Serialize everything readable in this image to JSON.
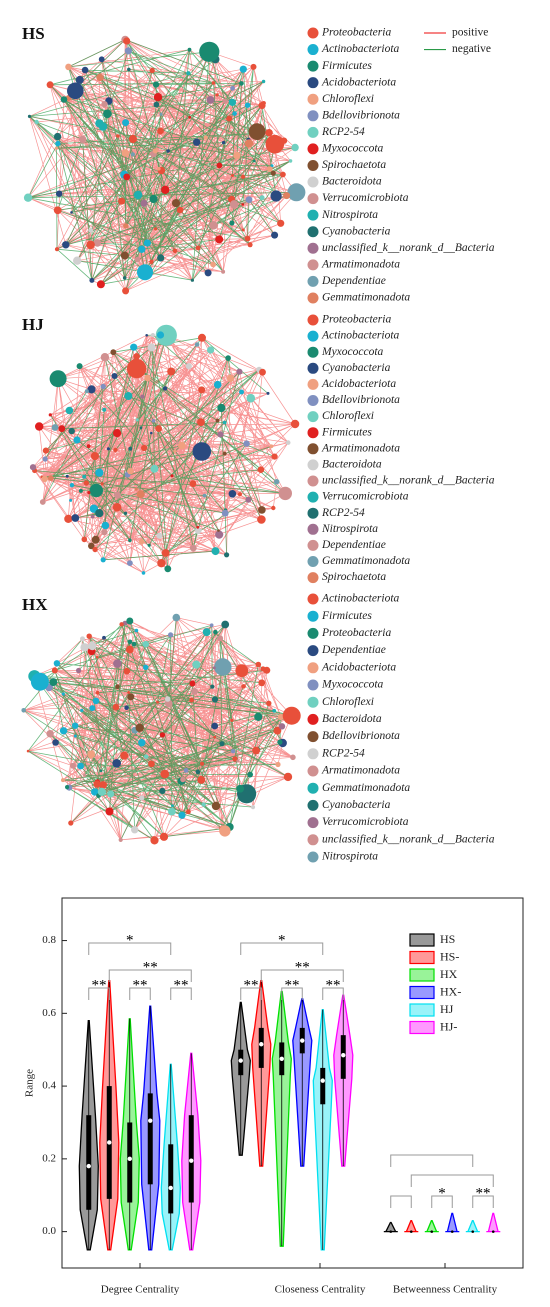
{
  "edge_legend": {
    "labels": [
      "positive",
      "negative"
    ],
    "colors": [
      "#f03a3a",
      "#2a9a48"
    ]
  },
  "networks": [
    {
      "label": "HS",
      "taxa": [
        "Proteobacteria",
        "Actinobacteriota",
        "Firmicutes",
        "Acidobacteriota",
        "Chloroflexi",
        "Bdellovibrionota",
        "RCP2-54",
        "Myxococcota",
        "Spirochaetota",
        "Bacteroidota",
        "Verrucomicrobiota",
        "Nitrospirota",
        "Cyanobacteria",
        "unclassified_k__norank_d__Bacteria",
        "Armatimonadota",
        "Dependentiae",
        "Gemmatimonadota"
      ],
      "colors": [
        "#e8503a",
        "#1ab0d0",
        "#1a8a70",
        "#2a4a80",
        "#f0a080",
        "#8090c0",
        "#70d0c0",
        "#e02020",
        "#805030",
        "#d0d0d0",
        "#d09090",
        "#20b0b0",
        "#207070",
        "#a07090",
        "#d09090",
        "#70a0b0",
        "#e08060"
      ]
    },
    {
      "label": "HJ",
      "taxa": [
        "Proteobacteria",
        "Actinobacteriota",
        "Myxococcota",
        "Cyanobacteria",
        "Acidobacteriota",
        "Bdellovibrionota",
        "Chloroflexi",
        "Firmicutes",
        "Armatimonadota",
        "Bacteroidota",
        "unclassified_k__norank_d__Bacteria",
        "Verrucomicrobiota",
        "RCP2-54",
        "Nitrospirota",
        "Dependentiae",
        "Gemmatimonadota",
        "Spirochaetota"
      ],
      "colors": [
        "#e8503a",
        "#1ab0d0",
        "#1a8a70",
        "#2a4a80",
        "#f0a080",
        "#8090c0",
        "#70d0c0",
        "#e02020",
        "#805030",
        "#d0d0d0",
        "#d09090",
        "#20b0b0",
        "#207070",
        "#a07090",
        "#d09090",
        "#70a0b0",
        "#e08060"
      ]
    },
    {
      "label": "HX",
      "taxa": [
        "Actinobacteriota",
        "Firmicutes",
        "Proteobacteria",
        "Dependentiae",
        "Acidobacteriota",
        "Myxococcota",
        "Chloroflexi",
        "Bacteroidota",
        "Bdellovibrionota",
        "RCP2-54",
        "Armatimonadota",
        "Gemmatimonadota",
        "Cyanobacteria",
        "Verrucomicrobiota",
        "unclassified_k__norank_d__Bacteria",
        "Nitrospirota"
      ],
      "colors": [
        "#e8503a",
        "#1ab0d0",
        "#1a8a70",
        "#2a4a80",
        "#f0a080",
        "#8090c0",
        "#70d0c0",
        "#e02020",
        "#805030",
        "#d0d0d0",
        "#d09090",
        "#20b0b0",
        "#207070",
        "#a07090",
        "#d09090",
        "#70a0b0"
      ]
    }
  ],
  "chart_data": {
    "type": "violin",
    "y_label": "Range",
    "categories": [
      "Degree Centrality",
      "Closeness Centrality",
      "Betweenness Centrality"
    ],
    "ylim": [
      -0.1,
      0.917
    ],
    "yticks": [
      {
        "value": 0,
        "label": "0.0"
      },
      0.2,
      0.4,
      0.6,
      0.8
    ],
    "legend": "upper right",
    "brackets": [
      [
        "*",
        "**",
        "**",
        "**",
        "**"
      ],
      [
        "*",
        "**",
        "**",
        "**",
        "**"
      ],
      [
        null,
        null,
        null,
        "*",
        "**"
      ]
    ],
    "series": [
      {
        "name": "HS",
        "color": "#000000",
        "values": [
          {
            "min": -0.05,
            "q1": 0.06,
            "median": 0.18,
            "q3": 0.32,
            "max": 0.58
          },
          {
            "min": 0.21,
            "q1": 0.43,
            "median": 0.47,
            "q3": 0.5,
            "max": 0.63
          },
          {
            "min": 0,
            "q1": 0,
            "median": 0,
            "q3": 0,
            "max": 0.025
          }
        ]
      },
      {
        "name": "HS-",
        "color": "#ff0000",
        "values": [
          {
            "min": -0.05,
            "q1": 0.09,
            "median": 0.245,
            "q3": 0.4,
            "max": 0.69
          },
          {
            "min": 0.18,
            "q1": 0.45,
            "median": 0.515,
            "q3": 0.56,
            "max": 0.69
          },
          {
            "min": 0,
            "q1": 0,
            "median": 0,
            "q3": 0,
            "max": 0.03
          }
        ]
      },
      {
        "name": "HX",
        "color": "#00e000",
        "values": [
          {
            "min": -0.05,
            "q1": 0.08,
            "median": 0.2,
            "q3": 0.3,
            "max": 0.585
          },
          {
            "min": -0.04,
            "q1": 0.43,
            "median": 0.475,
            "q3": 0.52,
            "max": 0.66
          },
          {
            "min": 0,
            "q1": 0,
            "median": 0,
            "q3": 0,
            "max": 0.03
          }
        ]
      },
      {
        "name": "HX-",
        "color": "#0000ff",
        "values": [
          {
            "min": -0.05,
            "q1": 0.13,
            "median": 0.305,
            "q3": 0.38,
            "max": 0.62
          },
          {
            "min": 0.18,
            "q1": 0.49,
            "median": 0.525,
            "q3": 0.56,
            "max": 0.64
          },
          {
            "min": 0,
            "q1": 0,
            "median": 0,
            "q3": 0,
            "max": 0.05
          }
        ]
      },
      {
        "name": "HJ",
        "color": "#00e0f0",
        "values": [
          {
            "min": -0.05,
            "q1": 0.05,
            "median": 0.12,
            "q3": 0.24,
            "max": 0.46
          },
          {
            "min": -0.05,
            "q1": 0.35,
            "median": 0.415,
            "q3": 0.45,
            "max": 0.61
          },
          {
            "min": 0,
            "q1": 0,
            "median": 0,
            "q3": 0,
            "max": 0.03
          }
        ]
      },
      {
        "name": "HJ-",
        "color": "#ff00ff",
        "values": [
          {
            "min": -0.05,
            "q1": 0.08,
            "median": 0.195,
            "q3": 0.32,
            "max": 0.49
          },
          {
            "min": 0.18,
            "q1": 0.42,
            "median": 0.485,
            "q3": 0.54,
            "max": 0.65
          },
          {
            "min": 0,
            "q1": 0,
            "median": 0,
            "q3": 0,
            "max": 0.05
          }
        ]
      }
    ]
  }
}
